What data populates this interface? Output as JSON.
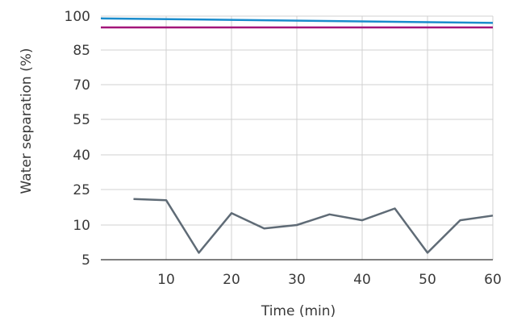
{
  "chart_data": {
    "type": "line",
    "xlabel": "Time (min)",
    "ylabel": "Water separation (%)",
    "xlim": [
      0,
      60
    ],
    "ylim": [
      5,
      100
    ],
    "x_ticks": [
      10,
      20,
      30,
      40,
      50,
      60
    ],
    "y_ticks": [
      5,
      10,
      25,
      40,
      55,
      70,
      85,
      100
    ],
    "grid": "vertical",
    "legend": "none",
    "series": [
      {
        "color": "#1a8ccc",
        "x": [
          0,
          60
        ],
        "y": [
          99,
          97
        ]
      },
      {
        "color": "#a3167a",
        "x": [
          0,
          60
        ],
        "y": [
          95,
          95
        ]
      },
      {
        "color": "#5f6b76",
        "x": [
          5,
          10,
          15,
          20,
          25,
          30,
          35,
          40,
          45,
          50,
          55,
          60
        ],
        "y": [
          21,
          20.5,
          6,
          15,
          9.5,
          10,
          14.5,
          12,
          17,
          6,
          12,
          14
        ]
      }
    ]
  }
}
